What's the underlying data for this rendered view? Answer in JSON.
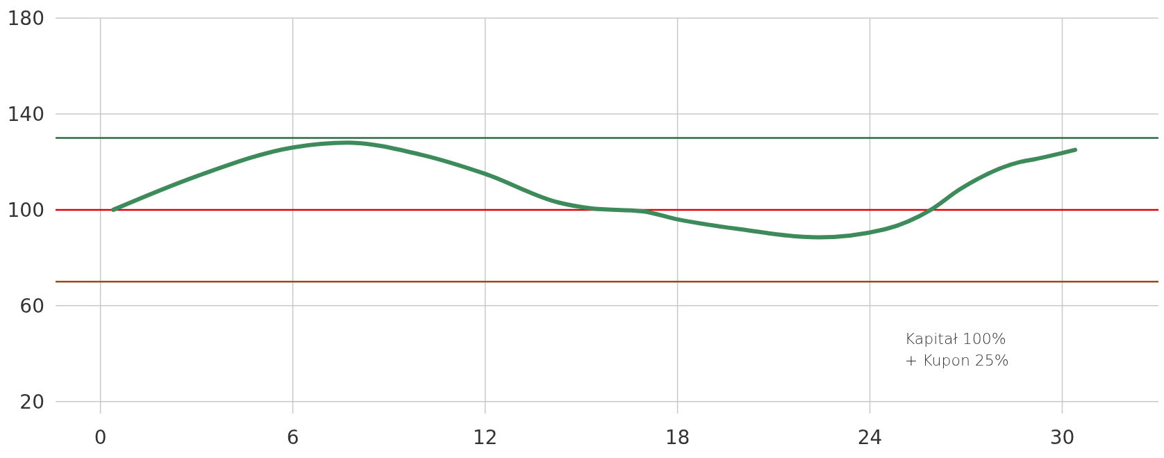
{
  "chart_data": {
    "type": "line",
    "x": [
      0.4,
      3,
      6,
      7.7,
      10,
      12,
      14.3,
      15.3,
      16.9,
      18,
      19.9,
      22.4,
      24.5,
      25.9,
      26.8,
      28.7,
      29.1,
      30.4
    ],
    "series": [
      {
        "color": "#3d8b5a",
        "values": [
          100,
          114,
          126,
          128,
          123,
          115,
          103,
          100.6,
          99.4,
          96,
          92,
          88.5,
          92,
          100,
          108.5,
          120,
          121,
          125
        ]
      }
    ],
    "xlim": [
      -1.4,
      33
    ],
    "ylim": [
      15,
      180
    ],
    "xticks": [
      0,
      6,
      12,
      18,
      24,
      30
    ],
    "yticks": [
      20,
      60,
      100,
      140,
      180
    ],
    "grid": true,
    "marker": "none",
    "line_style": "solid",
    "ref_lines": [
      {
        "axis": "y",
        "value": 130,
        "color": "#2d6a45"
      },
      {
        "axis": "y",
        "value": 100,
        "color": "#e00000"
      },
      {
        "axis": "y",
        "value": 70,
        "color": "#9a4a12"
      }
    ],
    "annotations": [
      "Kapitał 100%\n+ Kupon 25%"
    ]
  }
}
